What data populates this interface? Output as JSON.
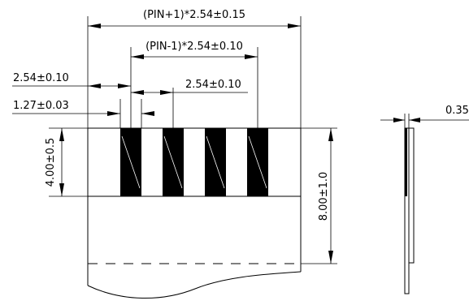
{
  "dimensions": {
    "overall_width": "(PIN+1)*2.54±0.15",
    "pad_span": "(PIN-1)*2.54±0.10",
    "edge_to_pad": "2.54±0.10",
    "pad_pitch": "2.54±0.10",
    "pad_width": "1.27±0.03",
    "pad_length": "4.00±0.5",
    "contact_length": "8.00±1.0",
    "thickness": "0.35"
  }
}
